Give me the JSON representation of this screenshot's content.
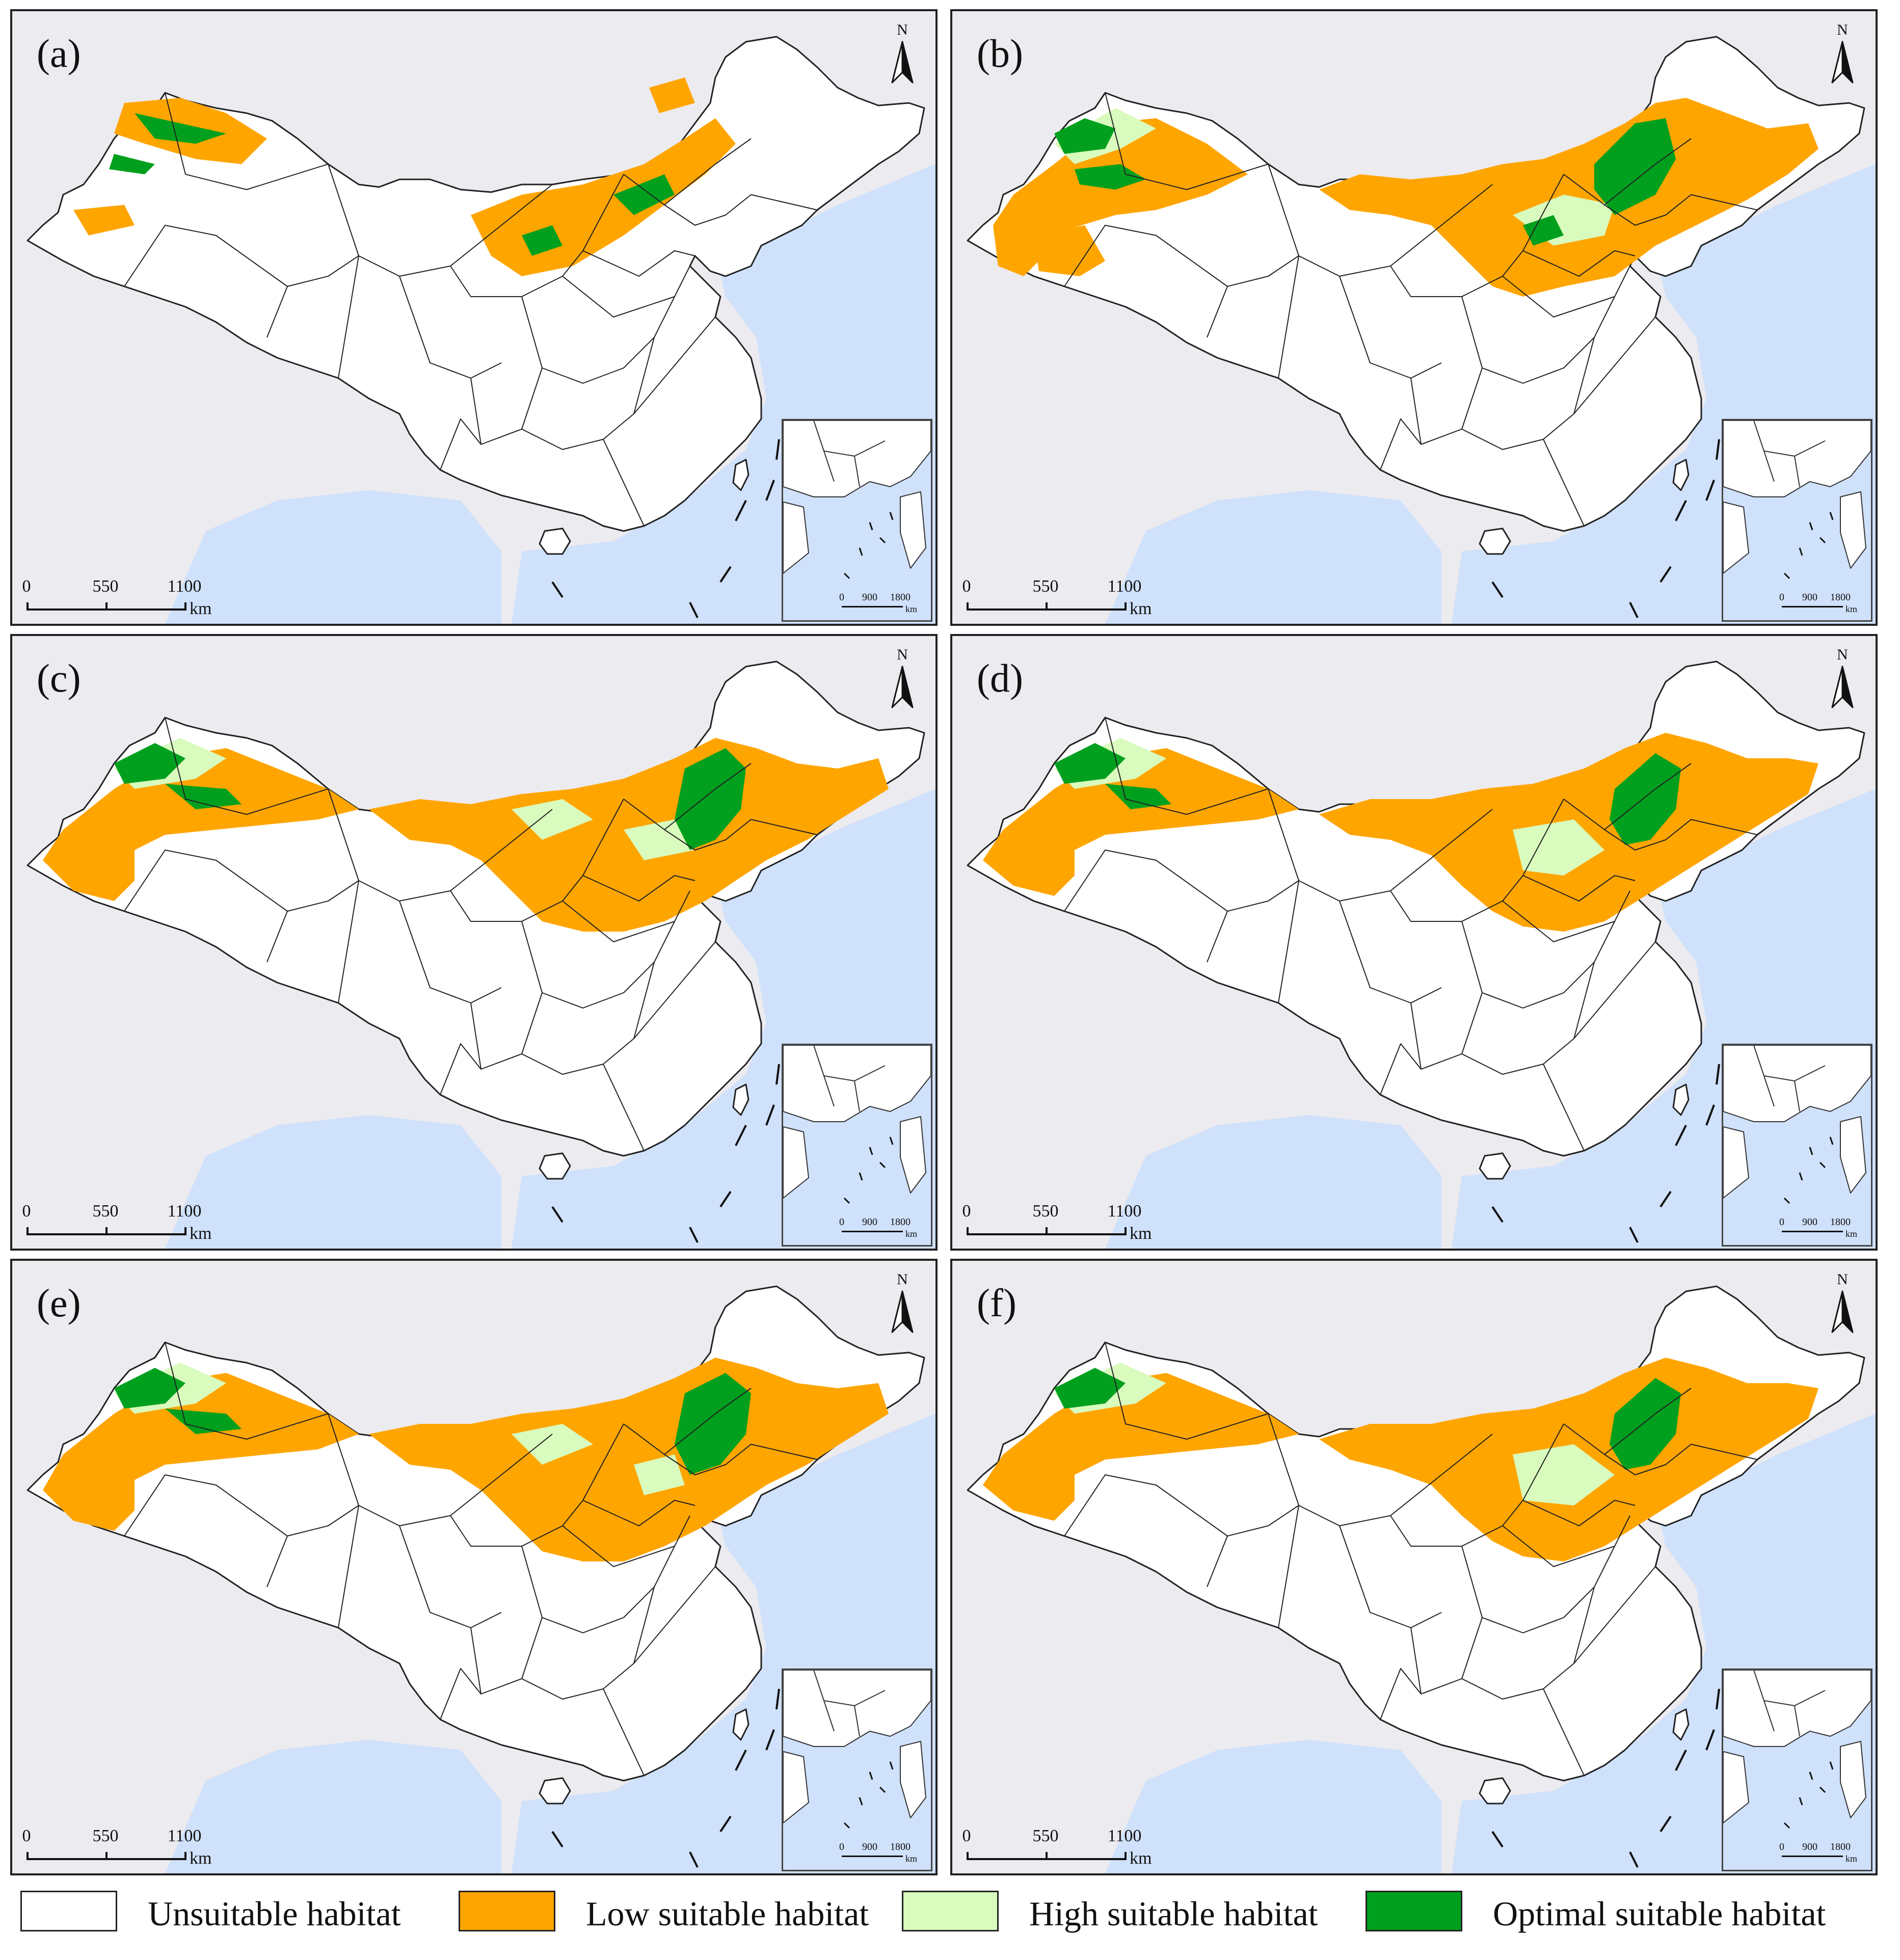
{
  "panels": [
    {
      "id": "a",
      "label": "(a)",
      "variant": 0
    },
    {
      "id": "b",
      "label": "(b)",
      "variant": 1
    },
    {
      "id": "c",
      "label": "(c)",
      "variant": 2
    },
    {
      "id": "d",
      "label": "(d)",
      "variant": 3
    },
    {
      "id": "e",
      "label": "(e)",
      "variant": 4
    },
    {
      "id": "f",
      "label": "(f)",
      "variant": 5
    }
  ],
  "north_arrow": "N",
  "scale_bar": {
    "ticks": [
      "0",
      "550",
      "1100"
    ],
    "unit": "km"
  },
  "inset_scale": {
    "ticks": [
      "0",
      "900",
      "1800"
    ],
    "unit": "km"
  },
  "legend": [
    {
      "label": "Unsuitable habitat",
      "color": "#ffffff"
    },
    {
      "label": "Low suitable habitat",
      "color": "#ffa500"
    },
    {
      "label": "High suitable habitat",
      "color": "#d9fbbd"
    },
    {
      "label": "Optimal suitable habitat",
      "color": "#00a01e"
    }
  ],
  "colors": {
    "sea": "#cfe1fb",
    "land_outside": "#ecebef",
    "border": "#222222"
  }
}
